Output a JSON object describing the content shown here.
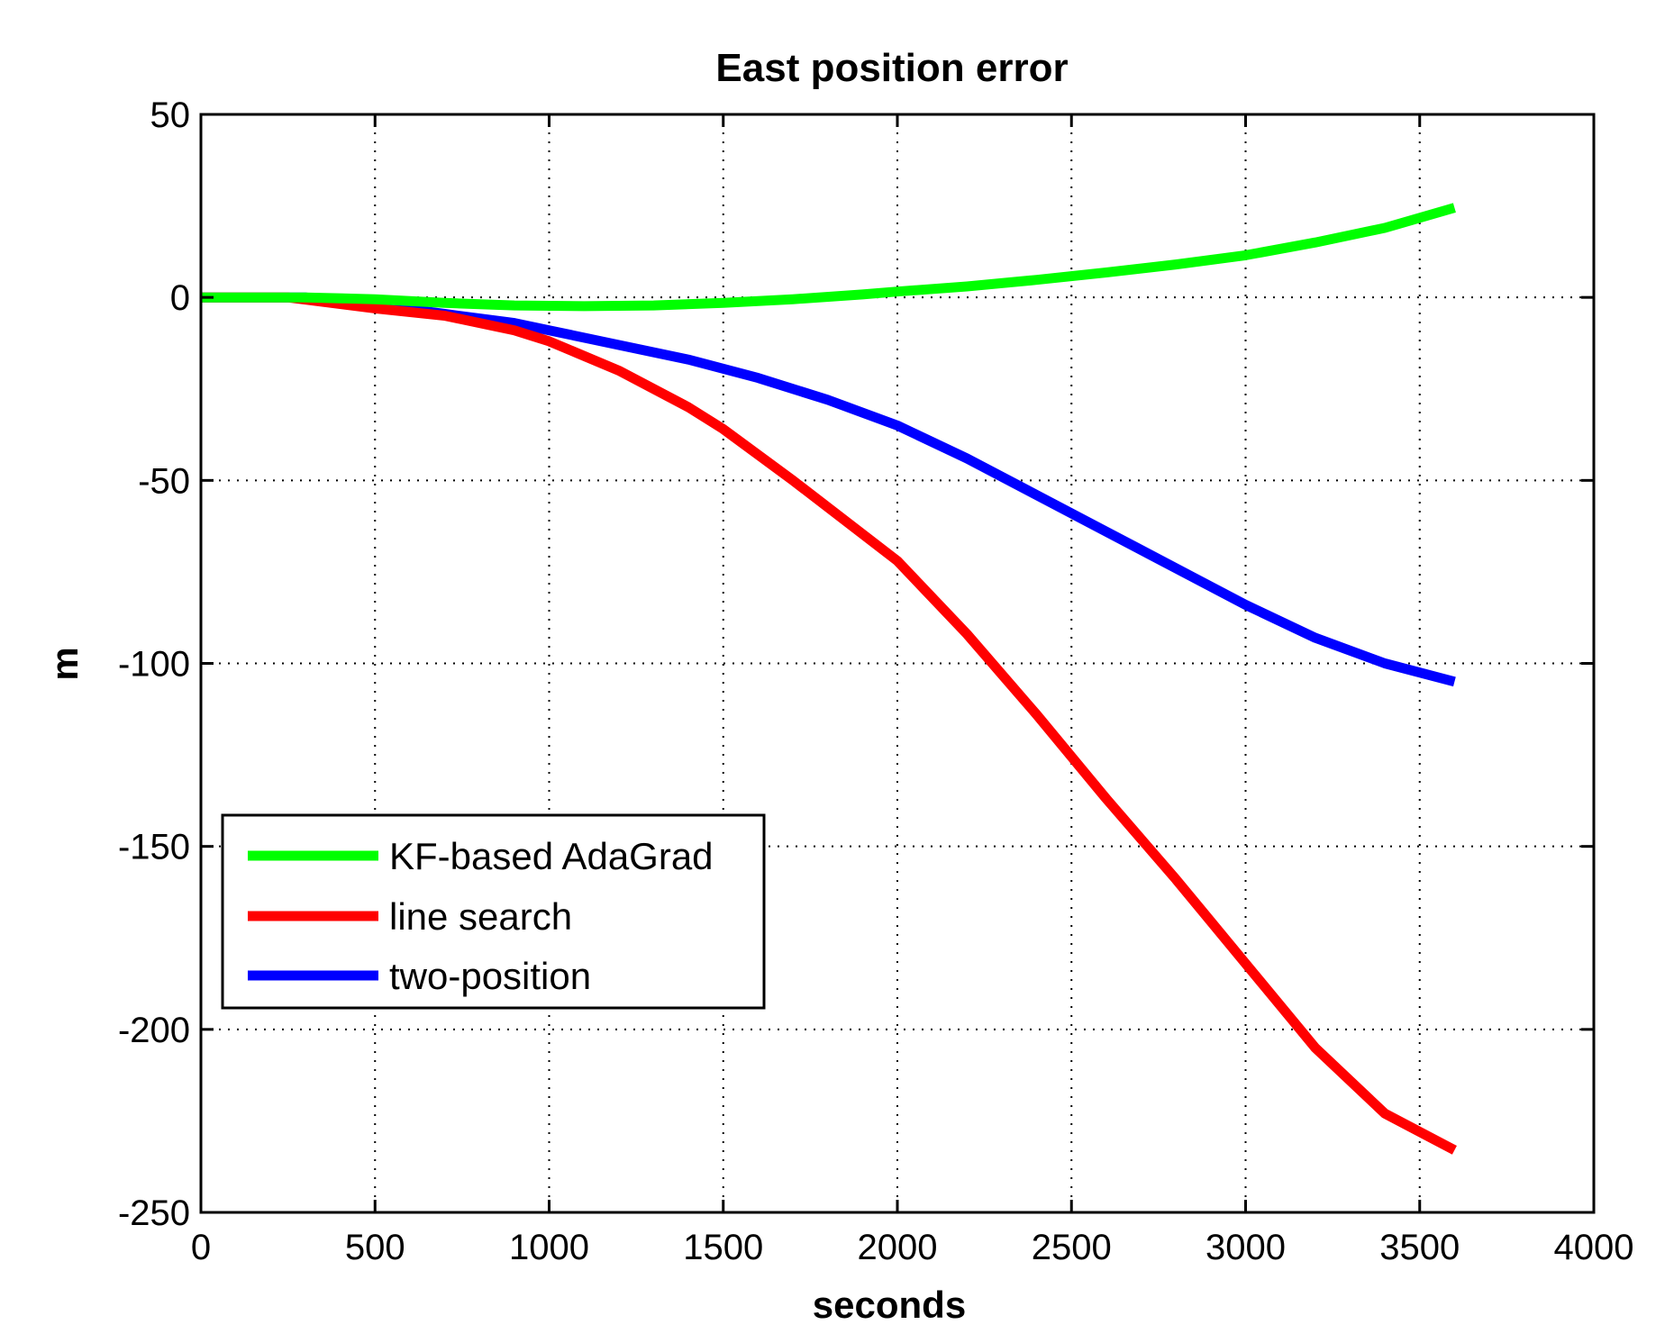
{
  "chart_data": {
    "type": "line",
    "title": "East position error",
    "xlabel": "seconds",
    "ylabel": "m",
    "xlim": [
      0,
      4000
    ],
    "ylim": [
      -250,
      50
    ],
    "xticks": [
      0,
      500,
      1000,
      1500,
      2000,
      2500,
      3000,
      3500,
      4000
    ],
    "yticks": [
      50,
      0,
      -50,
      -100,
      -150,
      -200,
      -250
    ],
    "xtick_labels": [
      "0",
      "500",
      "1000",
      "1500",
      "2000",
      "2500",
      "3000",
      "3500",
      "4000"
    ],
    "ytick_labels": [
      "50",
      "0",
      "-50",
      "-100",
      "-150",
      "-200",
      "-250"
    ],
    "grid": true,
    "legend_position": "lower-left",
    "series": [
      {
        "name": "KF-based AdaGrad",
        "color": "#00ff00",
        "x": [
          0,
          300,
          500,
          700,
          900,
          1100,
          1300,
          1500,
          1700,
          1900,
          2000,
          2200,
          2400,
          2600,
          2800,
          3000,
          3200,
          3400,
          3600
        ],
        "y": [
          0,
          0,
          -0.5,
          -1.5,
          -2.2,
          -2.4,
          -2.2,
          -1.5,
          -0.5,
          0.8,
          1.6,
          3,
          4.8,
          6.8,
          9,
          11.5,
          15,
          19,
          24.5
        ]
      },
      {
        "name": "line search",
        "color": "#ff0000",
        "x": [
          0,
          250,
          500,
          700,
          900,
          1000,
          1200,
          1400,
          1500,
          1700,
          2000,
          2200,
          2400,
          2600,
          2800,
          3000,
          3200,
          3400,
          3600
        ],
        "y": [
          0,
          0,
          -3,
          -5,
          -9,
          -12,
          -20,
          -30,
          -36,
          -50,
          -72,
          -92,
          -114,
          -137,
          -159,
          -182,
          -205,
          -223,
          -233
        ]
      },
      {
        "name": "two-position",
        "color": "#0000ff",
        "x": [
          0,
          300,
          500,
          700,
          900,
          1000,
          1200,
          1400,
          1600,
          1800,
          2000,
          2200,
          2400,
          2600,
          2800,
          3000,
          3200,
          3400,
          3600
        ],
        "y": [
          0,
          0,
          -2,
          -4.5,
          -7,
          -9,
          -13,
          -17,
          -22,
          -28,
          -35,
          -44,
          -54,
          -64,
          -74,
          -84,
          -93,
          -100,
          -105
        ]
      }
    ]
  }
}
